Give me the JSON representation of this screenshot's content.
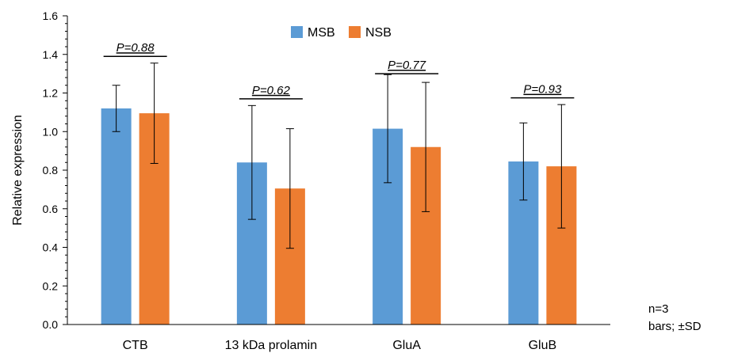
{
  "chart_data": {
    "type": "bar",
    "title": "",
    "xlabel": "",
    "ylabel": "Relative expression",
    "ylim": [
      0,
      1.6
    ],
    "yticks": [
      0.0,
      0.2,
      0.4,
      0.6,
      0.8,
      1.0,
      1.2,
      1.4,
      1.6
    ],
    "ytick_labels": [
      "0.0",
      "0.2",
      "0.4",
      "0.6",
      "0.8",
      "1.0",
      "1.2",
      "1.4",
      "1.6"
    ],
    "categories": [
      "CTB",
      "13 kDa prolamin",
      "GluA",
      "GluB"
    ],
    "series": [
      {
        "name": "MSB",
        "color": "#5b9bd5",
        "values": [
          1.12,
          0.84,
          1.015,
          0.845
        ],
        "errors": [
          0.12,
          0.295,
          0.28,
          0.2
        ]
      },
      {
        "name": "NSB",
        "color": "#ed7d31",
        "values": [
          1.095,
          0.705,
          0.92,
          0.82
        ],
        "errors": [
          0.26,
          0.31,
          0.335,
          0.32
        ]
      }
    ],
    "annotations": [
      "P=0.88",
      "P=0.62",
      "P=0.77",
      "P=0.93"
    ],
    "annotation_line_level": [
      1.39,
      1.17,
      1.3,
      1.175
    ],
    "legend": {
      "position": "top-center",
      "entries": [
        "MSB",
        "NSB"
      ]
    },
    "grid": false
  },
  "notes": {
    "n": "n=3",
    "bars": "bars; ±SD"
  }
}
